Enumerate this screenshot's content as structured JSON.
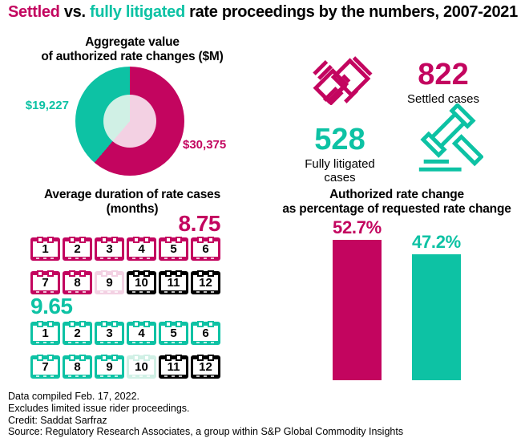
{
  "title": {
    "part_settled": "Settled",
    "part_vs": " vs. ",
    "part_litigated": "fully litigated",
    "part_rest": " rate proceedings by the numbers, 2007-2021"
  },
  "colors": {
    "magenta": "#c3055f",
    "teal": "#0dc2a4",
    "light_pink": "#f3d1e3",
    "light_teal": "#d0f0e5",
    "black": "#000000"
  },
  "sections": {
    "pie": {
      "title_line1": "Aggregate value",
      "title_line2": "of authorized rate changes ($M)"
    },
    "duration": {
      "title_line1": "Average duration of rate cases",
      "title_line2": "(months)"
    },
    "bars": {
      "title_line1": "Authorized rate change",
      "title_line2": "as  percentage of requested rate change"
    }
  },
  "icons": {
    "handshake": "handshake-icon (clasped hands, magenta outline)",
    "gavel": "gavel-icon (auction hammer with base, teal outline)"
  },
  "footer": {
    "line1": "Data compiled Feb. 17, 2022.",
    "line2": "Excludes limited issue rider proceedings.",
    "line3": "Credit: Saddat Sarfraz",
    "line4": "Source: Regulatory Research Associates, a group within S&P Global Commodity Insights"
  },
  "chart_data": [
    {
      "type": "pie",
      "style": "donut with lighter inner disc",
      "title": "Aggregate value of authorized rate changes ($M)",
      "labels": [
        "Settled",
        "Fully litigated"
      ],
      "values": [
        30375,
        19227
      ],
      "value_labels": [
        "$30,375",
        "$19,227"
      ],
      "colors": [
        "#c3055f",
        "#0dc2a4"
      ],
      "start_angle": "12 o'clock, settled slice clockwise"
    },
    {
      "type": "table",
      "title": "Number of rate cases",
      "categories": [
        "Settled cases",
        "Fully litigated cases"
      ],
      "values": [
        822,
        528
      ],
      "colors": [
        "#c3055f",
        "#0dc2a4"
      ]
    },
    {
      "type": "bar",
      "title": "Average duration of rate cases (months)",
      "categories": [
        "Settled",
        "Fully litigated"
      ],
      "values": [
        8.75,
        9.65
      ],
      "max": 12,
      "note": "rendered as 12 calendar-month pictograms per series; whole months in series color, fractional month in light tint, remaining months in black"
    },
    {
      "type": "bar",
      "title": "Authorized rate change as percentage of requested rate change",
      "categories": [
        "Settled",
        "Fully litigated"
      ],
      "values": [
        52.7,
        47.2
      ],
      "value_labels": [
        "52.7%",
        "47.2%"
      ],
      "ylim": [
        0,
        60
      ],
      "grid": false,
      "legend": false
    }
  ]
}
